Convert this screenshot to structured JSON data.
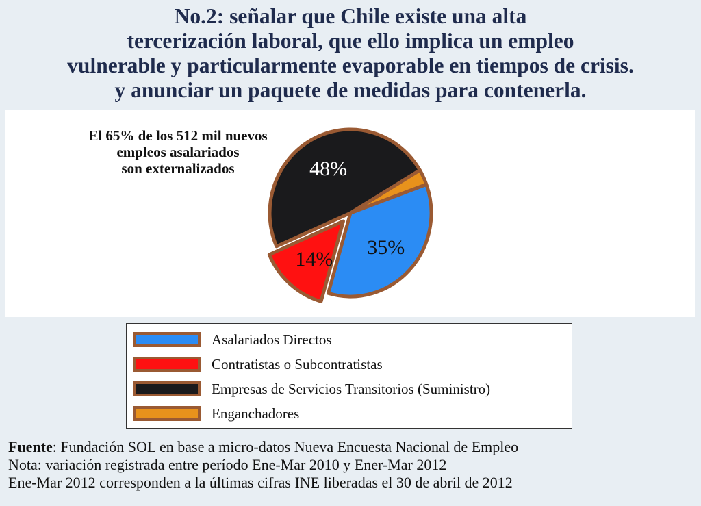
{
  "title_lines": [
    "No.2: señalar que Chile existe una alta",
    "tercerización laboral, que ello implica un empleo",
    "vulnerable y particularmente evaporable en tiempos de crisis.",
    "y anunciar un paquete de medidas para contenerla."
  ],
  "annotation_lines": [
    "El 65% de los 512 mil nuevos",
    "empleos asalariados",
    "son externalizados"
  ],
  "chart_data": {
    "type": "pie",
    "slices": [
      {
        "name": "Asalariados Directos",
        "value": 35,
        "label": "35%",
        "color": "#2b8cf4",
        "exploded": false
      },
      {
        "name": "Contratistas o Subcontratistas",
        "value": 14,
        "label": "14%",
        "color": "#ff1111",
        "exploded": true
      },
      {
        "name": "Empresas de Servicios Transitorios (Suministro)",
        "value": 48,
        "label": "48%",
        "color": "#1a1a1c",
        "exploded": false
      },
      {
        "name": "Enganchadores",
        "value": 3,
        "label": "",
        "color": "#e8921c",
        "exploded": false
      }
    ],
    "slice_border_color": "#9a5a33",
    "legend_position": "bottom"
  },
  "footer": {
    "source_bold": "Fuente",
    "source_rest": ": Fundación SOL en base a micro-datos Nueva Encuesta Nacional de Empleo",
    "note": "Nota: variación registrada entre período Ene-Mar 2010 y Ener-Mar 2012",
    "note2": "Ene-Mar 2012 corresponden a la últimas cifras INE liberadas el 30 de abril de 2012"
  }
}
